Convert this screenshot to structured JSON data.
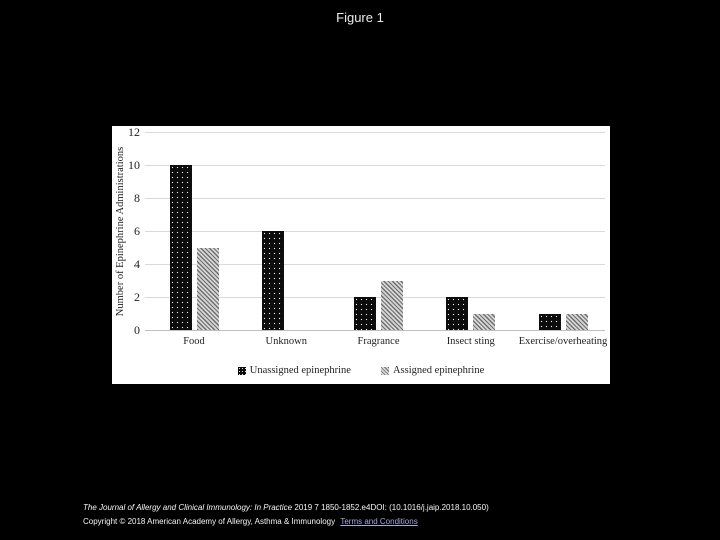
{
  "page": {
    "title": "Figure 1",
    "background_color": "#000000",
    "panel_color": "#ffffff"
  },
  "chart_data": {
    "type": "bar",
    "title": "",
    "categories": [
      "Food",
      "Unknown",
      "Fragrance",
      "Insect sting",
      "Exercise/overheating"
    ],
    "series": [
      {
        "name": "Unassigned epinephrine",
        "values": [
          10,
          6,
          2,
          2,
          1
        ],
        "pattern": "black-dotted",
        "color": "#0c0c0c"
      },
      {
        "name": "Assigned epinephrine",
        "values": [
          5,
          0,
          3,
          1,
          1
        ],
        "pattern": "gray-diagonal-hatch",
        "color": "#bdbdbd"
      }
    ],
    "xlabel": "",
    "ylabel": "Number of Epinephrine Administrations",
    "ylim": [
      0,
      12
    ],
    "yticks": [
      0,
      2,
      4,
      6,
      8,
      10,
      12
    ],
    "grid": true,
    "gridline_color": "#d9d9d9",
    "legend_position": "bottom"
  },
  "citation": {
    "journal": "The Journal of Allergy and Clinical Immunology: In Practice",
    "reference": "2019 7 1850-1852.e4DOI: (10.1016/j.jaip.2018.10.050)",
    "copyright": "Copyright © 2018 American Academy of Allergy, Asthma & Immunology",
    "terms_link": "Terms and Conditions",
    "link_color": "#a8a8dc",
    "text_color": "#f5f5f5"
  }
}
